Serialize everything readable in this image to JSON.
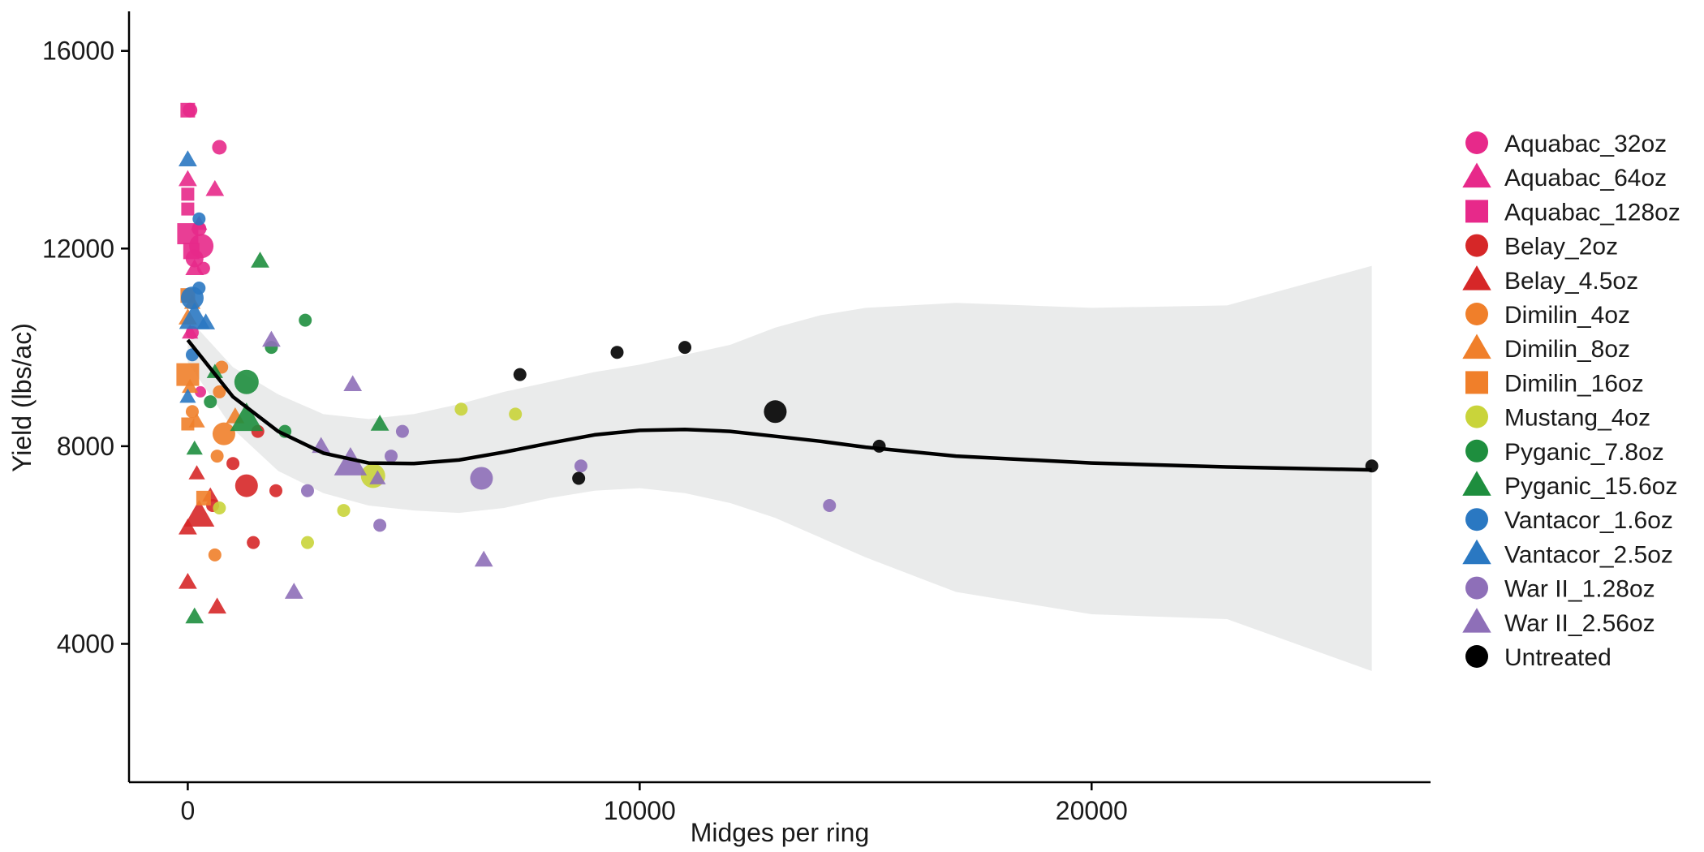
{
  "chart_data": {
    "type": "scatter",
    "title": "",
    "xlabel": "Midges per ring",
    "ylabel": "Yield (lbs/ac)",
    "xlim": [
      -1300,
      27500
    ],
    "ylim": [
      1200,
      16800
    ],
    "xticks": [
      0,
      10000,
      20000
    ],
    "xtick_labels": [
      "0",
      "10000",
      "20000"
    ],
    "yticks": [
      4000,
      8000,
      12000,
      16000
    ],
    "ytick_labels": [
      "4000",
      "8000",
      "12000",
      "16000"
    ],
    "grid": false,
    "legend_position": "right",
    "colors": {
      "Aquabac_32oz": "#E7298A",
      "Aquabac_64oz": "#E7298A",
      "Aquabac_128oz": "#E7298A",
      "Belay_2oz": "#D62728",
      "Belay_4.5oz": "#D62728",
      "Dimilin_4oz": "#F07F2A",
      "Dimilin_8oz": "#F07F2A",
      "Dimilin_16oz": "#F07F2A",
      "Mustang_4oz": "#C9D43A",
      "Pyganic_7.8oz": "#1E8E3E",
      "Pyganic_15.6oz": "#1E8E3E",
      "Vantacor_1.6oz": "#2A78C2",
      "Vantacor_2.5oz": "#2A78C2",
      "War II_1.28oz": "#8E6FB8",
      "War II_2.56oz": "#8E6FB8",
      "Untreated": "#000000",
      "ribbon": "#E6E8E8",
      "smooth_line": "#000000"
    },
    "legend": [
      {
        "label": "Aquabac_32oz",
        "shape": "circle"
      },
      {
        "label": "Aquabac_64oz",
        "shape": "triangle"
      },
      {
        "label": "Aquabac_128oz",
        "shape": "square"
      },
      {
        "label": "Belay_2oz",
        "shape": "circle"
      },
      {
        "label": "Belay_4.5oz",
        "shape": "triangle"
      },
      {
        "label": "Dimilin_4oz",
        "shape": "circle"
      },
      {
        "label": "Dimilin_8oz",
        "shape": "triangle"
      },
      {
        "label": "Dimilin_16oz",
        "shape": "square"
      },
      {
        "label": "Mustang_4oz",
        "shape": "circle"
      },
      {
        "label": "Pyganic_7.8oz",
        "shape": "circle"
      },
      {
        "label": "Pyganic_15.6oz",
        "shape": "triangle"
      },
      {
        "label": "Vantacor_1.6oz",
        "shape": "circle"
      },
      {
        "label": "Vantacor_2.5oz",
        "shape": "triangle"
      },
      {
        "label": "War II_1.28oz",
        "shape": "circle"
      },
      {
        "label": "War II_2.56oz",
        "shape": "triangle"
      },
      {
        "label": "Untreated",
        "shape": "circle"
      }
    ],
    "smooth": {
      "x": [
        0,
        1000,
        2000,
        3000,
        4000,
        5000,
        6000,
        7000,
        8000,
        9000,
        10000,
        11000,
        12000,
        13000,
        14000,
        15000,
        17000,
        20000,
        23000,
        26200
      ],
      "y": [
        10150,
        9000,
        8300,
        7860,
        7660,
        7650,
        7720,
        7880,
        8060,
        8230,
        8320,
        8340,
        8300,
        8200,
        8100,
        7980,
        7800,
        7660,
        7580,
        7520
      ],
      "lower": [
        9700,
        8350,
        7500,
        7050,
        6800,
        6700,
        6650,
        6750,
        6950,
        7100,
        7150,
        7050,
        6850,
        6550,
        6150,
        5750,
        5050,
        4600,
        4500,
        3450
      ],
      "upper": [
        10600,
        9600,
        9050,
        8650,
        8550,
        8650,
        8850,
        9100,
        9300,
        9500,
        9650,
        9850,
        10050,
        10400,
        10650,
        10800,
        10900,
        10800,
        10850,
        11650
      ]
    },
    "series": [
      {
        "name": "Aquabac_32oz",
        "shape": "circle",
        "points": [
          {
            "x": 50,
            "y": 14800,
            "size": 0.9
          },
          {
            "x": 700,
            "y": 14050,
            "size": 0.9
          },
          {
            "x": 300,
            "y": 12050,
            "size": 1.5
          },
          {
            "x": 150,
            "y": 11800,
            "size": 1.1
          },
          {
            "x": 250,
            "y": 12400,
            "size": 0.9
          },
          {
            "x": 350,
            "y": 11600,
            "size": 0.8
          },
          {
            "x": 280,
            "y": 9100,
            "size": 0.7
          },
          {
            "x": 100,
            "y": 10300,
            "size": 0.8
          }
        ]
      },
      {
        "name": "Aquabac_64oz",
        "shape": "triangle",
        "points": [
          {
            "x": 0,
            "y": 13400,
            "size": 0.9
          },
          {
            "x": 600,
            "y": 13200,
            "size": 0.9
          },
          {
            "x": 150,
            "y": 11600,
            "size": 0.9
          },
          {
            "x": 250,
            "y": 12500,
            "size": 0.8
          },
          {
            "x": 50,
            "y": 10300,
            "size": 0.8
          }
        ]
      },
      {
        "name": "Aquabac_128oz",
        "shape": "square",
        "points": [
          {
            "x": 0,
            "y": 14800,
            "size": 0.9
          },
          {
            "x": 0,
            "y": 13100,
            "size": 0.8
          },
          {
            "x": 0,
            "y": 12300,
            "size": 1.3
          },
          {
            "x": 80,
            "y": 11950,
            "size": 1.0
          },
          {
            "x": 0,
            "y": 12800,
            "size": 0.8
          }
        ]
      },
      {
        "name": "Belay_2oz",
        "shape": "circle",
        "points": [
          {
            "x": 1300,
            "y": 7200,
            "size": 1.4
          },
          {
            "x": 1000,
            "y": 7650,
            "size": 0.8
          },
          {
            "x": 1550,
            "y": 8300,
            "size": 0.8
          },
          {
            "x": 1950,
            "y": 7100,
            "size": 0.8
          },
          {
            "x": 1450,
            "y": 6050,
            "size": 0.8
          },
          {
            "x": 550,
            "y": 6800,
            "size": 0.8
          }
        ]
      },
      {
        "name": "Belay_4.5oz",
        "shape": "triangle",
        "points": [
          {
            "x": 250,
            "y": 6600,
            "size": 1.5
          },
          {
            "x": 0,
            "y": 6350,
            "size": 0.9
          },
          {
            "x": 0,
            "y": 5250,
            "size": 0.9
          },
          {
            "x": 650,
            "y": 4750,
            "size": 0.9
          },
          {
            "x": 200,
            "y": 7450,
            "size": 0.8
          },
          {
            "x": 500,
            "y": 7000,
            "size": 0.8
          }
        ]
      },
      {
        "name": "Dimilin_4oz",
        "shape": "circle",
        "points": [
          {
            "x": 800,
            "y": 8250,
            "size": 1.4
          },
          {
            "x": 650,
            "y": 7800,
            "size": 0.8
          },
          {
            "x": 600,
            "y": 5800,
            "size": 0.8
          },
          {
            "x": 750,
            "y": 9600,
            "size": 0.8
          },
          {
            "x": 700,
            "y": 9100,
            "size": 0.8
          },
          {
            "x": 100,
            "y": 8700,
            "size": 0.8
          }
        ]
      },
      {
        "name": "Dimilin_8oz",
        "shape": "triangle",
        "points": [
          {
            "x": 0,
            "y": 10600,
            "size": 0.9
          },
          {
            "x": 100,
            "y": 10900,
            "size": 0.8
          },
          {
            "x": 50,
            "y": 9200,
            "size": 0.8
          },
          {
            "x": 200,
            "y": 8500,
            "size": 0.8
          },
          {
            "x": 1050,
            "y": 8600,
            "size": 0.9
          }
        ]
      },
      {
        "name": "Dimilin_16oz",
        "shape": "square",
        "points": [
          {
            "x": 0,
            "y": 9450,
            "size": 1.4
          },
          {
            "x": 0,
            "y": 11050,
            "size": 0.9
          },
          {
            "x": 0,
            "y": 8450,
            "size": 0.8
          },
          {
            "x": 350,
            "y": 6950,
            "size": 0.9
          }
        ]
      },
      {
        "name": "Mustang_4oz",
        "shape": "circle",
        "points": [
          {
            "x": 4100,
            "y": 7400,
            "size": 1.5
          },
          {
            "x": 6050,
            "y": 8750,
            "size": 0.8
          },
          {
            "x": 7250,
            "y": 8650,
            "size": 0.8
          },
          {
            "x": 3450,
            "y": 6700,
            "size": 0.8
          },
          {
            "x": 2650,
            "y": 6050,
            "size": 0.8
          },
          {
            "x": 700,
            "y": 6750,
            "size": 0.8
          }
        ]
      },
      {
        "name": "Pyganic_7.8oz",
        "shape": "circle",
        "points": [
          {
            "x": 1300,
            "y": 9300,
            "size": 1.5
          },
          {
            "x": 2600,
            "y": 10550,
            "size": 0.8
          },
          {
            "x": 1850,
            "y": 10000,
            "size": 0.8
          },
          {
            "x": 2150,
            "y": 8300,
            "size": 0.8
          },
          {
            "x": 500,
            "y": 8900,
            "size": 0.8
          }
        ]
      },
      {
        "name": "Pyganic_15.6oz",
        "shape": "triangle",
        "points": [
          {
            "x": 1300,
            "y": 8550,
            "size": 1.6
          },
          {
            "x": 1600,
            "y": 11750,
            "size": 0.9
          },
          {
            "x": 4250,
            "y": 8450,
            "size": 0.9
          },
          {
            "x": 150,
            "y": 7950,
            "size": 0.8
          },
          {
            "x": 150,
            "y": 4550,
            "size": 0.9
          },
          {
            "x": 600,
            "y": 9500,
            "size": 0.8
          }
        ]
      },
      {
        "name": "Vantacor_1.6oz",
        "shape": "circle",
        "points": [
          {
            "x": 100,
            "y": 11000,
            "size": 1.4
          },
          {
            "x": 250,
            "y": 12600,
            "size": 0.8
          },
          {
            "x": 250,
            "y": 11200,
            "size": 0.8
          },
          {
            "x": 100,
            "y": 9850,
            "size": 0.8
          }
        ]
      },
      {
        "name": "Vantacor_2.5oz",
        "shape": "triangle",
        "points": [
          {
            "x": 0,
            "y": 13800,
            "size": 0.9
          },
          {
            "x": 150,
            "y": 10600,
            "size": 1.5
          },
          {
            "x": 400,
            "y": 10500,
            "size": 0.9
          },
          {
            "x": 0,
            "y": 9000,
            "size": 0.8
          }
        ]
      },
      {
        "name": "War II_1.28oz",
        "shape": "circle",
        "points": [
          {
            "x": 6500,
            "y": 7350,
            "size": 1.4
          },
          {
            "x": 4750,
            "y": 8300,
            "size": 0.8
          },
          {
            "x": 4500,
            "y": 7800,
            "size": 0.8
          },
          {
            "x": 4250,
            "y": 6400,
            "size": 0.8
          },
          {
            "x": 2650,
            "y": 7100,
            "size": 0.8
          },
          {
            "x": 8700,
            "y": 7600,
            "size": 0.8
          },
          {
            "x": 14200,
            "y": 6800,
            "size": 0.8
          }
        ]
      },
      {
        "name": "War II_2.56oz",
        "shape": "triangle",
        "points": [
          {
            "x": 3600,
            "y": 7650,
            "size": 1.6
          },
          {
            "x": 1850,
            "y": 10150,
            "size": 0.9
          },
          {
            "x": 3650,
            "y": 9250,
            "size": 0.9
          },
          {
            "x": 2950,
            "y": 8000,
            "size": 0.9
          },
          {
            "x": 2350,
            "y": 5050,
            "size": 0.9
          },
          {
            "x": 6550,
            "y": 5700,
            "size": 0.9
          },
          {
            "x": 4200,
            "y": 7350,
            "size": 0.8
          }
        ]
      },
      {
        "name": "Untreated",
        "shape": "circle",
        "points": [
          {
            "x": 13000,
            "y": 8700,
            "size": 1.4
          },
          {
            "x": 7350,
            "y": 9450,
            "size": 0.8
          },
          {
            "x": 9500,
            "y": 9900,
            "size": 0.8
          },
          {
            "x": 11000,
            "y": 10000,
            "size": 0.8
          },
          {
            "x": 15300,
            "y": 8000,
            "size": 0.8
          },
          {
            "x": 26200,
            "y": 7600,
            "size": 0.8
          },
          {
            "x": 8650,
            "y": 7350,
            "size": 0.8
          }
        ]
      }
    ]
  }
}
